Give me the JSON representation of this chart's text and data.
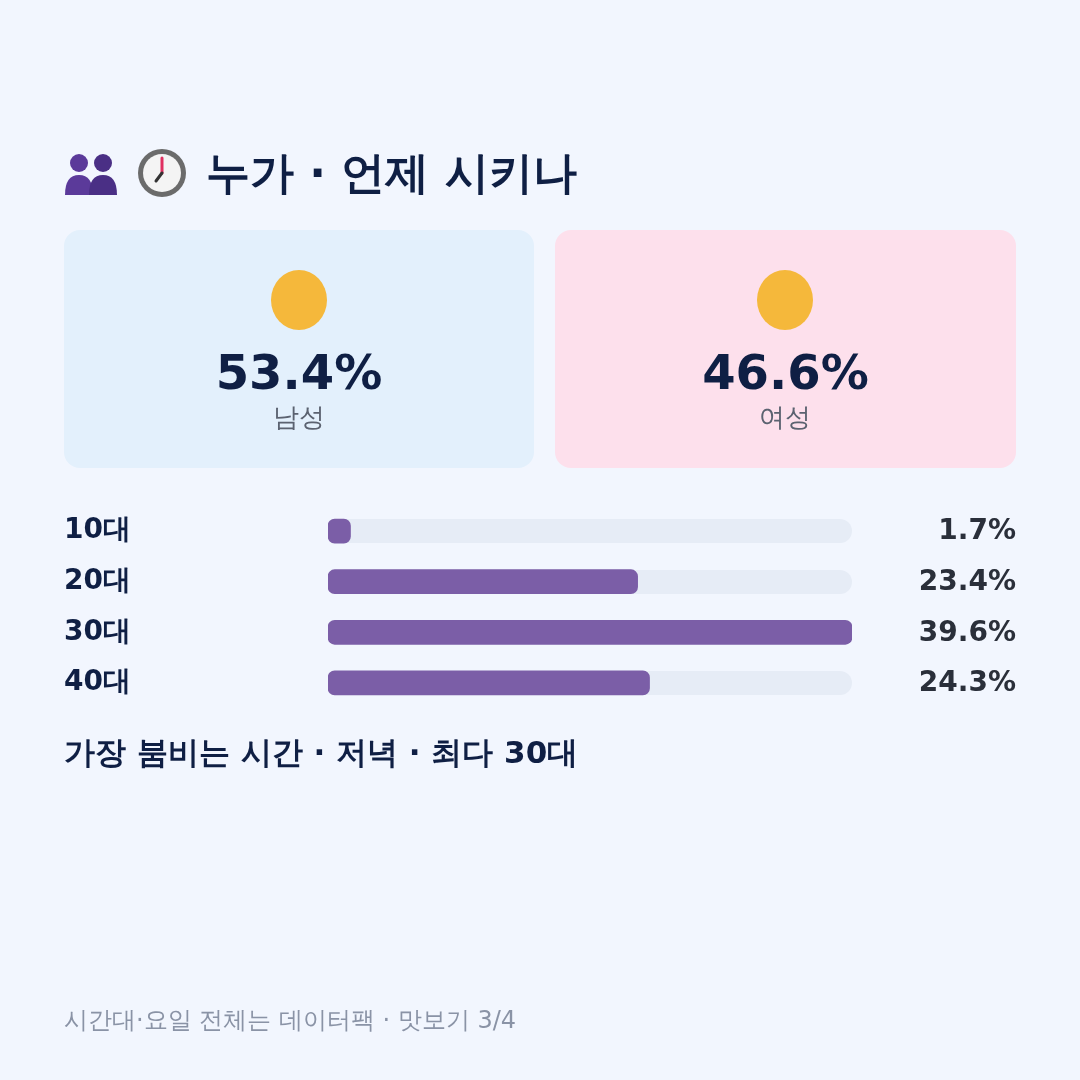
{
  "chart_data": [
    {
      "type": "other",
      "title": "누가 · 언제 시키나",
      "categories": [
        "남성",
        "여성"
      ],
      "values": [
        53.4,
        46.6
      ],
      "value_labels": [
        "53.4%",
        "46.6%"
      ],
      "colors": [
        "#e3f0fc",
        "#fde0ec"
      ]
    },
    {
      "type": "bar",
      "orientation": "horizontal",
      "categories": [
        "10대",
        "20대",
        "30대",
        "40대"
      ],
      "values": [
        1.7,
        23.4,
        39.6,
        24.3
      ],
      "color": "#7b5ea7",
      "xlim": [
        0,
        39.6
      ],
      "tick_labels": "y",
      "grid": false,
      "legend": false,
      "value_labels": [
        "1.7%",
        "23.4%",
        "39.6%",
        "24.3%"
      ],
      "annotations": [
        "가장 붐비는 시간 · 저녁 · 최다 30대",
        "시간대·요일 전체는 데이터팩 · 맛보기 3/4"
      ]
    }
  ]
}
